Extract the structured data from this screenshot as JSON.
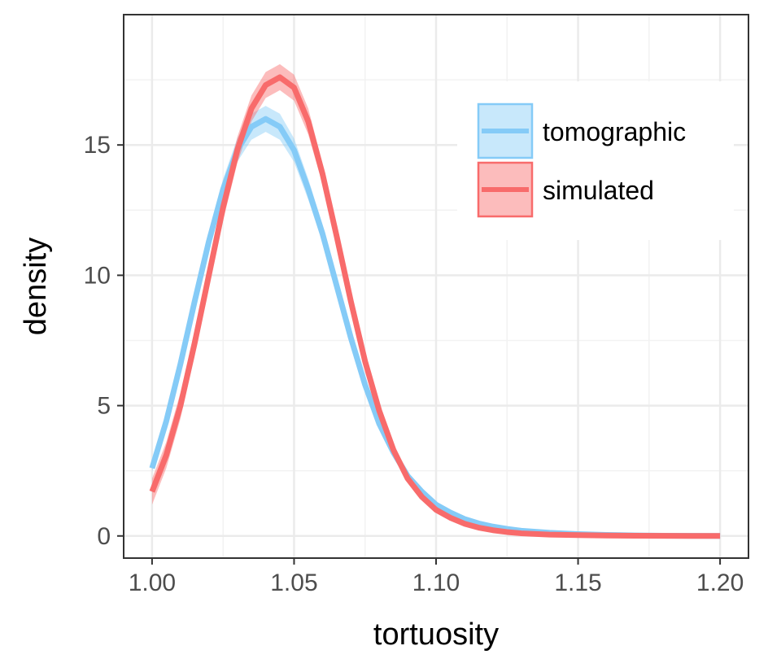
{
  "chart_data": {
    "type": "line",
    "title": "",
    "xlabel": "tortuosity",
    "ylabel": "density",
    "xlim": [
      0.99,
      1.21
    ],
    "ylim": [
      -0.85,
      20.0
    ],
    "x_ticks": [
      1.0,
      1.05,
      1.1,
      1.15,
      1.2
    ],
    "x_tick_labels": [
      "1.00",
      "1.05",
      "1.10",
      "1.15",
      "1.20"
    ],
    "y_ticks": [
      0,
      5,
      10,
      15
    ],
    "y_tick_labels": [
      "0",
      "5",
      "10",
      "15"
    ],
    "grid": true,
    "legend": "top-right",
    "series": [
      {
        "name": "tomographic",
        "color": "#85cbf7",
        "x": [
          1.0,
          1.005,
          1.01,
          1.015,
          1.02,
          1.025,
          1.03,
          1.035,
          1.04,
          1.045,
          1.05,
          1.055,
          1.06,
          1.065,
          1.07,
          1.075,
          1.08,
          1.085,
          1.09,
          1.095,
          1.1,
          1.105,
          1.11,
          1.115,
          1.12,
          1.125,
          1.13,
          1.14,
          1.15,
          1.16,
          1.17,
          1.18,
          1.19,
          1.2
        ],
        "values": [
          2.6,
          4.4,
          6.6,
          9.0,
          11.3,
          13.3,
          14.8,
          15.7,
          16.0,
          15.7,
          14.8,
          13.3,
          11.6,
          9.6,
          7.6,
          5.8,
          4.3,
          3.2,
          2.3,
          1.7,
          1.2,
          0.9,
          0.65,
          0.48,
          0.36,
          0.27,
          0.2,
          0.12,
          0.07,
          0.04,
          0.02,
          0.01,
          0.005,
          0.0
        ],
        "ci_halfwidth": [
          0.15,
          0.2,
          0.25,
          0.3,
          0.35,
          0.4,
          0.45,
          0.5,
          0.5,
          0.5,
          0.45,
          0.4,
          0.35,
          0.3,
          0.25,
          0.2,
          0.2,
          0.15,
          0.12,
          0.1,
          0.08,
          0.06,
          0.05,
          0.04,
          0.03,
          0.03,
          0.02,
          0.02,
          0.01,
          0.01,
          0.01,
          0.01,
          0.01,
          0.01
        ]
      },
      {
        "name": "simulated",
        "color": "#f86b6b",
        "x": [
          1.0,
          1.005,
          1.01,
          1.015,
          1.02,
          1.025,
          1.03,
          1.035,
          1.04,
          1.045,
          1.05,
          1.055,
          1.06,
          1.065,
          1.07,
          1.075,
          1.08,
          1.085,
          1.09,
          1.095,
          1.1,
          1.105,
          1.11,
          1.115,
          1.12,
          1.125,
          1.13,
          1.14,
          1.15,
          1.16,
          1.17,
          1.18,
          1.19,
          1.2
        ],
        "values": [
          1.7,
          3.1,
          5.0,
          7.4,
          10.0,
          12.6,
          14.8,
          16.4,
          17.3,
          17.6,
          17.2,
          15.9,
          13.9,
          11.5,
          9.0,
          6.7,
          4.8,
          3.3,
          2.2,
          1.5,
          1.0,
          0.7,
          0.47,
          0.32,
          0.22,
          0.15,
          0.1,
          0.05,
          0.03,
          0.015,
          0.01,
          0.005,
          0.002,
          0.0
        ],
        "ci_halfwidth": [
          0.5,
          0.5,
          0.5,
          0.5,
          0.5,
          0.5,
          0.5,
          0.5,
          0.5,
          0.5,
          0.5,
          0.5,
          0.4,
          0.35,
          0.3,
          0.3,
          0.25,
          0.2,
          0.15,
          0.12,
          0.1,
          0.08,
          0.06,
          0.05,
          0.04,
          0.03,
          0.03,
          0.02,
          0.01,
          0.01,
          0.01,
          0.01,
          0.01,
          0.01
        ]
      }
    ]
  }
}
